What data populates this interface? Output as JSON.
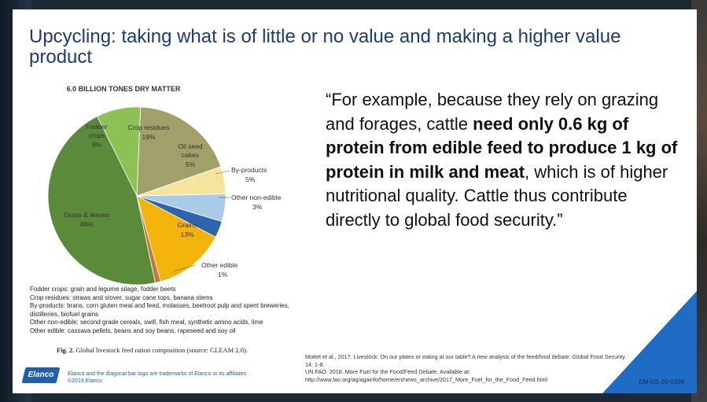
{
  "slide": {
    "title": "Upcycling: taking what is of little or no value and making a higher value product"
  },
  "chart_data": {
    "type": "pie",
    "title": "6.0 BILLION TONES DRY MATTER",
    "slices": [
      {
        "name": "Grass & leaves",
        "value": 46,
        "label": "46%",
        "color": "#5a8a3a"
      },
      {
        "name": "Fodder crops",
        "value": 8,
        "label": "8%",
        "color": "#8dc155"
      },
      {
        "name": "Crop residues",
        "value": 19,
        "label": "19%",
        "color": "#a1a06a"
      },
      {
        "name": "Oil seed cakes",
        "value": 5,
        "label": "5%",
        "color": "#f5e39e"
      },
      {
        "name": "By-products",
        "value": 5,
        "label": "5%",
        "color": "#a9cbe8"
      },
      {
        "name": "Other non-edible",
        "value": 3,
        "label": "3%",
        "color": "#2d64ad"
      },
      {
        "name": "Grains",
        "value": 13,
        "label": "13%",
        "color": "#f4b30b"
      },
      {
        "name": "Other edible",
        "value": 1,
        "label": "1%",
        "color": "#c27a3a"
      }
    ],
    "slice_labels": {
      "fodder": [
        "Fodder",
        "crops",
        "8%"
      ],
      "crop_residues": [
        "Crop residues",
        "19%"
      ],
      "oil_seed": [
        "Oil seed",
        "cakes",
        "5%"
      ],
      "by_products": [
        "By-products",
        "5%"
      ],
      "other_non_edible": [
        "Other non-edible",
        "3%"
      ],
      "grass": [
        "Grass & leaves",
        "46%"
      ],
      "grains": [
        "Grains",
        "13%"
      ],
      "other_edible": [
        "Other edible",
        "1%"
      ]
    }
  },
  "notes": [
    "Fodder crops: grain and legume silage, fodder beets",
    "Crop residues: straws and stover, sugar cane tops, banana stems",
    "By-products: brans, corn gluten meal and feed, molasses, beetroot pulp and spent breweries, distilleries, biofuel grains",
    "Other non-edible: second grade cereals, swill, fish meal, synthetic amino acids, lime",
    "Other edible: cassava pellets, beans and soy beans, rapeseed and soy oil"
  ],
  "caption": {
    "prefix": "Fig. 2.",
    "text": " Global livestock feed ration composition (source: GLEAM 2.0)."
  },
  "quote": {
    "part1": "“For example, because they rely on grazing and forages, cattle ",
    "bold": "need only 0.6 kg of protein from edible feed to produce 1 kg of protein in milk and meat",
    "part2": ", which is of higher nutritional quality. Cattle thus contribute directly to global food security.”"
  },
  "references": [
    "Mottet et al., 2017. Livestock: On our plates or eating at our table? A new analysis of the feed/food debate. Global Food Security. 14: 1-8.",
    "UN FAO. 2018. More Fuel for the Food/Feed Debate. Available at: http://www.fao.org/ag/againfo/home/en/news_archive/2017_More_Fuel_for_the_Food_Feed.html"
  ],
  "footer": {
    "logo_text": "Elanco",
    "trademark_line1": "Elanco and the diagonal bar logo are trademarks of Elanco or its affiliates",
    "trademark_line2": "©2019 Elanco",
    "code": "EM-US-20-0304"
  }
}
